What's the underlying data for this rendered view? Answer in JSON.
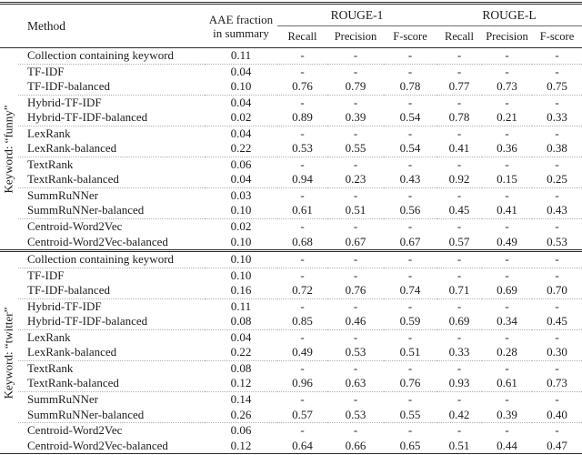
{
  "table": {
    "header": {
      "method": "Method",
      "aae_line1": "AAE fraction",
      "aae_line2": "in summary",
      "rouge1": "ROUGE-1",
      "rougeL": "ROUGE-L",
      "subheaders": [
        "Recall",
        "Precision",
        "F-score",
        "Recall",
        "Precision",
        "F-score"
      ]
    },
    "groups": [
      {
        "label": "Keyword: “funny”",
        "rows": [
          {
            "method": "Collection containing keyword",
            "aae": "0.11",
            "values": [
              "-",
              "-",
              "-",
              "-",
              "-",
              "-"
            ]
          },
          {
            "method": "TF-IDF",
            "aae": "0.04",
            "values": [
              "-",
              "-",
              "-",
              "-",
              "-",
              "-"
            ]
          },
          {
            "method": "TF-IDF-balanced",
            "aae": "0.10",
            "values": [
              "0.76",
              "0.79",
              "0.78",
              "0.77",
              "0.73",
              "0.75"
            ]
          },
          {
            "method": "Hybrid-TF-IDF",
            "aae": "0.04",
            "values": [
              "-",
              "-",
              "-",
              "-",
              "-",
              "-"
            ]
          },
          {
            "method": "Hybrid-TF-IDF-balanced",
            "aae": "0.02",
            "values": [
              "0.89",
              "0.39",
              "0.54",
              "0.78",
              "0.21",
              "0.33"
            ]
          },
          {
            "method": "LexRank",
            "aae": "0.04",
            "values": [
              "-",
              "-",
              "-",
              "-",
              "-",
              "-"
            ]
          },
          {
            "method": "LexRank-balanced",
            "aae": "0.22",
            "values": [
              "0.53",
              "0.55",
              "0.54",
              "0.41",
              "0.36",
              "0.38"
            ]
          },
          {
            "method": "TextRank",
            "aae": "0.06",
            "values": [
              "-",
              "-",
              "-",
              "-",
              "-",
              "-"
            ]
          },
          {
            "method": "TextRank-balanced",
            "aae": "0.04",
            "values": [
              "0.94",
              "0.23",
              "0.43",
              "0.92",
              "0.15",
              "0.25"
            ]
          },
          {
            "method": "SummRuNNer",
            "aae": "0.03",
            "values": [
              "-",
              "-",
              "-",
              "-",
              "-",
              "-"
            ]
          },
          {
            "method": "SummRuNNer-balanced",
            "aae": "0.10",
            "values": [
              "0.61",
              "0.51",
              "0.56",
              "0.45",
              "0.41",
              "0.43"
            ]
          },
          {
            "method": "Centroid-Word2Vec",
            "aae": "0.02",
            "values": [
              "-",
              "-",
              "-",
              "-",
              "-",
              "-"
            ]
          },
          {
            "method": "Centroid-Word2Vec-balanced",
            "aae": "0.10",
            "values": [
              "0.68",
              "0.67",
              "0.67",
              "0.57",
              "0.49",
              "0.53"
            ]
          }
        ]
      },
      {
        "label": "Keyword: “twitter”",
        "rows": [
          {
            "method": "Collection containing keyword",
            "aae": "0.10",
            "values": [
              "-",
              "-",
              "-",
              "-",
              "-",
              "-"
            ]
          },
          {
            "method": "TF-IDF",
            "aae": "0.10",
            "values": [
              "-",
              "-",
              "-",
              "-",
              "-",
              "-"
            ]
          },
          {
            "method": "TF-IDF-balanced",
            "aae": "0.16",
            "values": [
              "0.72",
              "0.76",
              "0.74",
              "0.71",
              "0.69",
              "0.70"
            ]
          },
          {
            "method": "Hybrid-TF-IDF",
            "aae": "0.11",
            "values": [
              "-",
              "-",
              "-",
              "-",
              "-",
              "-"
            ]
          },
          {
            "method": "Hybrid-TF-IDF-balanced",
            "aae": "0.08",
            "values": [
              "0.85",
              "0.46",
              "0.59",
              "0.69",
              "0.34",
              "0.45"
            ]
          },
          {
            "method": "LexRank",
            "aae": "0.04",
            "values": [
              "-",
              "-",
              "-",
              "-",
              "-",
              "-"
            ]
          },
          {
            "method": "LexRank-balanced",
            "aae": "0.22",
            "values": [
              "0.49",
              "0.53",
              "0.51",
              "0.33",
              "0.28",
              "0.30"
            ]
          },
          {
            "method": "TextRank",
            "aae": "0.08",
            "values": [
              "-",
              "-",
              "-",
              "-",
              "-",
              "-"
            ]
          },
          {
            "method": "TextRank-balanced",
            "aae": "0.12",
            "values": [
              "0.96",
              "0.63",
              "0.76",
              "0.93",
              "0.61",
              "0.73"
            ]
          },
          {
            "method": "SummRuNNer",
            "aae": "0.14",
            "values": [
              "-",
              "-",
              "-",
              "-",
              "-",
              "-"
            ]
          },
          {
            "method": "SummRuNNer-balanced",
            "aae": "0.26",
            "values": [
              "0.57",
              "0.53",
              "0.55",
              "0.42",
              "0.39",
              "0.40"
            ]
          },
          {
            "method": "Centroid-Word2Vec",
            "aae": "0.06",
            "values": [
              "-",
              "-",
              "-",
              "-",
              "-",
              "-"
            ]
          },
          {
            "method": "Centroid-Word2Vec-balanced",
            "aae": "0.12",
            "values": [
              "0.64",
              "0.66",
              "0.65",
              "0.51",
              "0.44",
              "0.47"
            ]
          }
        ]
      }
    ]
  }
}
